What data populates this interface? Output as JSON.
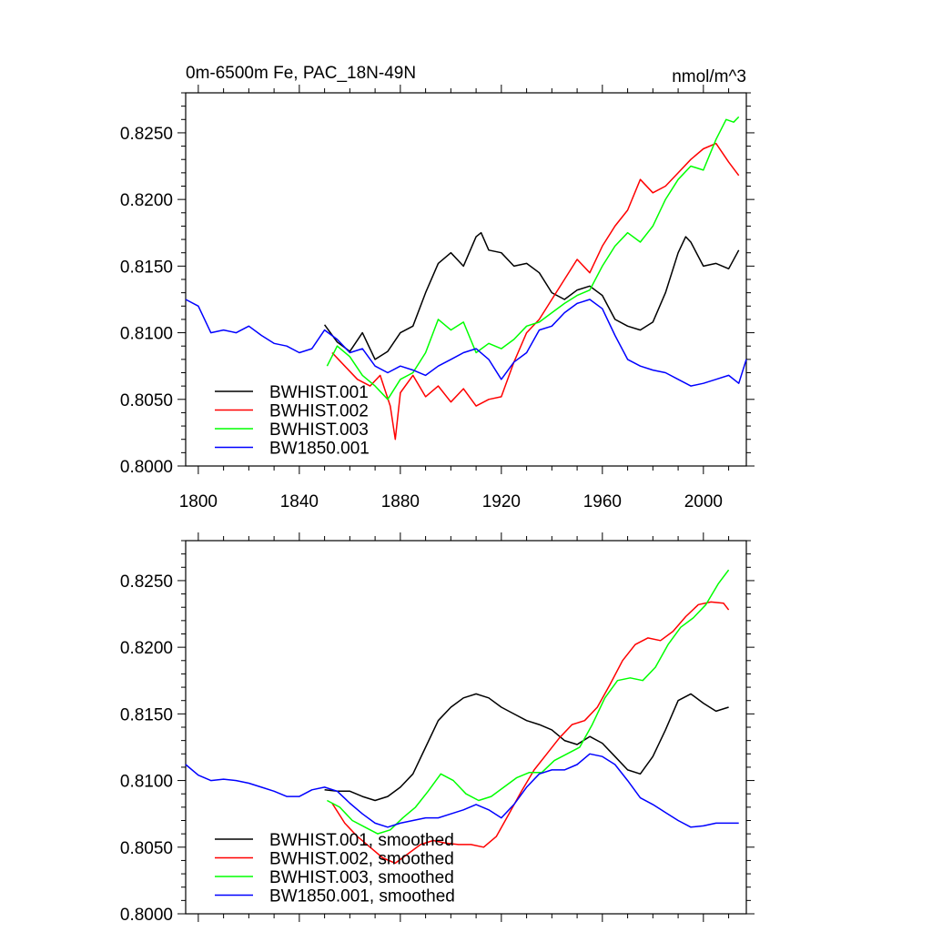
{
  "chart_data": [
    {
      "type": "line",
      "title_left": "0m-6500m Fe, PAC_18N-49N",
      "title_right": "nmol/m^3",
      "xlim": [
        1795,
        2017
      ],
      "ylim": [
        0.8,
        0.828
      ],
      "xticks": [
        1800,
        1840,
        1880,
        1920,
        1960,
        2000
      ],
      "xtick_labels": [
        "1800",
        "1840",
        "1880",
        "1920",
        "1960",
        "2000"
      ],
      "yticks": [
        0.8,
        0.805,
        0.81,
        0.815,
        0.82,
        0.825
      ],
      "ytick_labels": [
        "0.8000",
        "0.8050",
        "0.8100",
        "0.8150",
        "0.8200",
        "0.8250"
      ],
      "legend_position": "bottom-left",
      "series": [
        {
          "name": "BWHIST.001",
          "color": "#000000",
          "x": [
            1850,
            1855,
            1860,
            1865,
            1870,
            1875,
            1880,
            1885,
            1890,
            1895,
            1900,
            1905,
            1910,
            1912,
            1915,
            1920,
            1925,
            1930,
            1935,
            1940,
            1945,
            1950,
            1955,
            1960,
            1965,
            1970,
            1975,
            1980,
            1985,
            1990,
            1993,
            1995,
            2000,
            2005,
            2010,
            2014
          ],
          "y": [
            0.8106,
            0.8093,
            0.8086,
            0.81,
            0.808,
            0.8086,
            0.81,
            0.8105,
            0.813,
            0.8152,
            0.816,
            0.815,
            0.8172,
            0.8175,
            0.8162,
            0.816,
            0.815,
            0.8152,
            0.8145,
            0.813,
            0.8125,
            0.8132,
            0.8135,
            0.8128,
            0.811,
            0.8105,
            0.8102,
            0.8108,
            0.813,
            0.816,
            0.8172,
            0.8168,
            0.815,
            0.8152,
            0.8148,
            0.8162
          ]
        },
        {
          "name": "BWHIST.002",
          "color": "#ff0000",
          "x": [
            1853,
            1858,
            1863,
            1868,
            1872,
            1876,
            1878,
            1880,
            1885,
            1890,
            1895,
            1900,
            1905,
            1910,
            1915,
            1920,
            1925,
            1930,
            1935,
            1940,
            1945,
            1950,
            1955,
            1960,
            1965,
            1970,
            1975,
            1980,
            1985,
            1990,
            1995,
            2000,
            2005,
            2010,
            2014
          ],
          "y": [
            0.8085,
            0.8075,
            0.8065,
            0.806,
            0.8068,
            0.8045,
            0.802,
            0.8055,
            0.8068,
            0.8052,
            0.806,
            0.8048,
            0.8058,
            0.8045,
            0.805,
            0.8052,
            0.8078,
            0.81,
            0.811,
            0.8125,
            0.814,
            0.8155,
            0.8145,
            0.8165,
            0.818,
            0.8192,
            0.8215,
            0.8205,
            0.821,
            0.822,
            0.823,
            0.8238,
            0.8242,
            0.8228,
            0.8218
          ]
        },
        {
          "name": "BWHIST.003",
          "color": "#00ff00",
          "x": [
            1851,
            1855,
            1860,
            1865,
            1870,
            1875,
            1880,
            1885,
            1890,
            1895,
            1900,
            1905,
            1910,
            1915,
            1920,
            1925,
            1930,
            1935,
            1940,
            1945,
            1950,
            1955,
            1960,
            1965,
            1970,
            1975,
            1980,
            1985,
            1990,
            1995,
            2000,
            2005,
            2009,
            2012,
            2014
          ],
          "y": [
            0.8075,
            0.809,
            0.8082,
            0.8068,
            0.806,
            0.805,
            0.8065,
            0.807,
            0.8085,
            0.811,
            0.8102,
            0.8108,
            0.8085,
            0.8092,
            0.8088,
            0.8095,
            0.8105,
            0.8108,
            0.8115,
            0.8122,
            0.8128,
            0.8132,
            0.815,
            0.8165,
            0.8175,
            0.8168,
            0.818,
            0.82,
            0.8215,
            0.8225,
            0.8222,
            0.8245,
            0.826,
            0.8258,
            0.8262
          ]
        },
        {
          "name": "BW1850.001",
          "color": "#0000ff",
          "x": [
            1795,
            1800,
            1805,
            1810,
            1815,
            1820,
            1825,
            1830,
            1835,
            1840,
            1845,
            1850,
            1855,
            1860,
            1865,
            1870,
            1875,
            1880,
            1885,
            1890,
            1895,
            1900,
            1905,
            1910,
            1915,
            1920,
            1925,
            1930,
            1935,
            1940,
            1945,
            1950,
            1955,
            1960,
            1965,
            1970,
            1975,
            1980,
            1985,
            1990,
            1995,
            2000,
            2005,
            2010,
            2014,
            2017
          ],
          "y": [
            0.8125,
            0.812,
            0.81,
            0.8102,
            0.81,
            0.8105,
            0.8098,
            0.8092,
            0.809,
            0.8085,
            0.8088,
            0.8102,
            0.8095,
            0.8085,
            0.8088,
            0.8075,
            0.807,
            0.8075,
            0.8072,
            0.8068,
            0.8075,
            0.808,
            0.8085,
            0.8088,
            0.808,
            0.8065,
            0.8078,
            0.8085,
            0.8102,
            0.8105,
            0.8115,
            0.8122,
            0.8125,
            0.8118,
            0.8098,
            0.808,
            0.8075,
            0.8072,
            0.807,
            0.8065,
            0.806,
            0.8062,
            0.8065,
            0.8068,
            0.8062,
            0.808
          ]
        }
      ]
    },
    {
      "type": "line",
      "xlim": [
        1795,
        2017
      ],
      "ylim": [
        0.8,
        0.828
      ],
      "xticks": [
        1800,
        1840,
        1880,
        1920,
        1960,
        2000
      ],
      "yticks": [
        0.8,
        0.805,
        0.81,
        0.815,
        0.82,
        0.825
      ],
      "ytick_labels": [
        "0.8000",
        "0.8050",
        "0.8100",
        "0.8150",
        "0.8200",
        "0.8250"
      ],
      "legend_position": "bottom-left",
      "series": [
        {
          "name": "BWHIST.001, smoothed",
          "color": "#000000",
          "x": [
            1850,
            1855,
            1860,
            1865,
            1870,
            1875,
            1880,
            1885,
            1890,
            1895,
            1900,
            1905,
            1910,
            1915,
            1920,
            1925,
            1930,
            1935,
            1940,
            1945,
            1950,
            1955,
            1960,
            1965,
            1970,
            1975,
            1980,
            1985,
            1990,
            1995,
            2000,
            2005,
            2010
          ],
          "y": [
            0.8093,
            0.8092,
            0.8092,
            0.8088,
            0.8085,
            0.8088,
            0.8095,
            0.8105,
            0.8125,
            0.8145,
            0.8155,
            0.8162,
            0.8165,
            0.8162,
            0.8155,
            0.815,
            0.8145,
            0.8142,
            0.8138,
            0.813,
            0.8127,
            0.8133,
            0.8128,
            0.8118,
            0.8108,
            0.8105,
            0.8118,
            0.8138,
            0.816,
            0.8165,
            0.8158,
            0.8152,
            0.8155
          ]
        },
        {
          "name": "BWHIST.002, smoothed",
          "color": "#ff0000",
          "x": [
            1853,
            1858,
            1863,
            1868,
            1873,
            1878,
            1883,
            1888,
            1893,
            1898,
            1903,
            1908,
            1913,
            1918,
            1923,
            1928,
            1933,
            1938,
            1943,
            1948,
            1953,
            1958,
            1963,
            1968,
            1973,
            1978,
            1983,
            1988,
            1993,
            1998,
            2003,
            2008,
            2010
          ],
          "y": [
            0.8083,
            0.8068,
            0.8058,
            0.805,
            0.8042,
            0.8038,
            0.8045,
            0.8052,
            0.8055,
            0.8053,
            0.8052,
            0.8052,
            0.805,
            0.8058,
            0.8075,
            0.8092,
            0.8108,
            0.812,
            0.8132,
            0.8142,
            0.8145,
            0.8155,
            0.8172,
            0.819,
            0.8202,
            0.8207,
            0.8205,
            0.8212,
            0.8223,
            0.8232,
            0.8234,
            0.8233,
            0.8228
          ]
        },
        {
          "name": "BWHIST.003, smoothed",
          "color": "#00ff00",
          "x": [
            1851,
            1856,
            1861,
            1866,
            1871,
            1876,
            1881,
            1886,
            1891,
            1896,
            1901,
            1906,
            1911,
            1916,
            1921,
            1926,
            1931,
            1936,
            1941,
            1946,
            1951,
            1956,
            1961,
            1966,
            1971,
            1976,
            1981,
            1986,
            1991,
            1996,
            2001,
            2006,
            2010
          ],
          "y": [
            0.8085,
            0.808,
            0.807,
            0.8065,
            0.806,
            0.8063,
            0.8072,
            0.808,
            0.8092,
            0.8105,
            0.81,
            0.809,
            0.8085,
            0.8088,
            0.8095,
            0.8102,
            0.8106,
            0.8106,
            0.8115,
            0.812,
            0.8125,
            0.8142,
            0.8162,
            0.8175,
            0.8177,
            0.8175,
            0.8185,
            0.8202,
            0.8215,
            0.8222,
            0.8232,
            0.8248,
            0.8258
          ]
        },
        {
          "name": "BW1850.001, smoothed",
          "color": "#0000ff",
          "x": [
            1795,
            1800,
            1805,
            1810,
            1815,
            1820,
            1825,
            1830,
            1835,
            1840,
            1845,
            1850,
            1855,
            1860,
            1865,
            1870,
            1875,
            1880,
            1885,
            1890,
            1895,
            1900,
            1905,
            1910,
            1915,
            1920,
            1925,
            1930,
            1935,
            1940,
            1945,
            1950,
            1955,
            1960,
            1965,
            1970,
            1975,
            1980,
            1985,
            1990,
            1995,
            2000,
            2005,
            2010,
            2014
          ],
          "y": [
            0.8112,
            0.8104,
            0.81,
            0.8101,
            0.81,
            0.8098,
            0.8095,
            0.8092,
            0.8088,
            0.8088,
            0.8093,
            0.8095,
            0.8092,
            0.8083,
            0.8075,
            0.8068,
            0.8065,
            0.8068,
            0.807,
            0.8072,
            0.8072,
            0.8075,
            0.8078,
            0.8082,
            0.8078,
            0.8072,
            0.8082,
            0.8095,
            0.8105,
            0.8108,
            0.8108,
            0.8112,
            0.812,
            0.8118,
            0.8112,
            0.81,
            0.8087,
            0.8082,
            0.8076,
            0.807,
            0.8065,
            0.8066,
            0.8068,
            0.8068,
            0.8068
          ]
        }
      ]
    }
  ]
}
